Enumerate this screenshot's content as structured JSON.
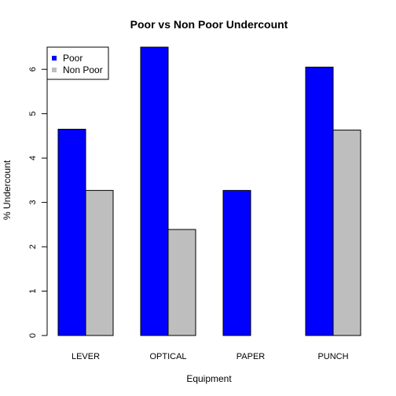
{
  "chart_data": {
    "type": "bar",
    "title": "Poor vs Non Poor Undercount",
    "xlabel": "Equipment",
    "ylabel": "% Undercount",
    "categories": [
      "LEVER",
      "OPTICAL",
      "PAPER",
      "PUNCH"
    ],
    "series": [
      {
        "name": "Poor",
        "color": "#0000FF",
        "values": [
          4.65,
          6.5,
          3.27,
          6.05
        ]
      },
      {
        "name": "Non Poor",
        "color": "#BEBEBE",
        "values": [
          3.27,
          2.39,
          0.0,
          4.63
        ]
      }
    ],
    "ylim": [
      0,
      6.5
    ],
    "yticks": [
      "0",
      "1",
      "2",
      "3",
      "4",
      "5",
      "6"
    ],
    "legend_position": "top-left",
    "grid": false
  }
}
